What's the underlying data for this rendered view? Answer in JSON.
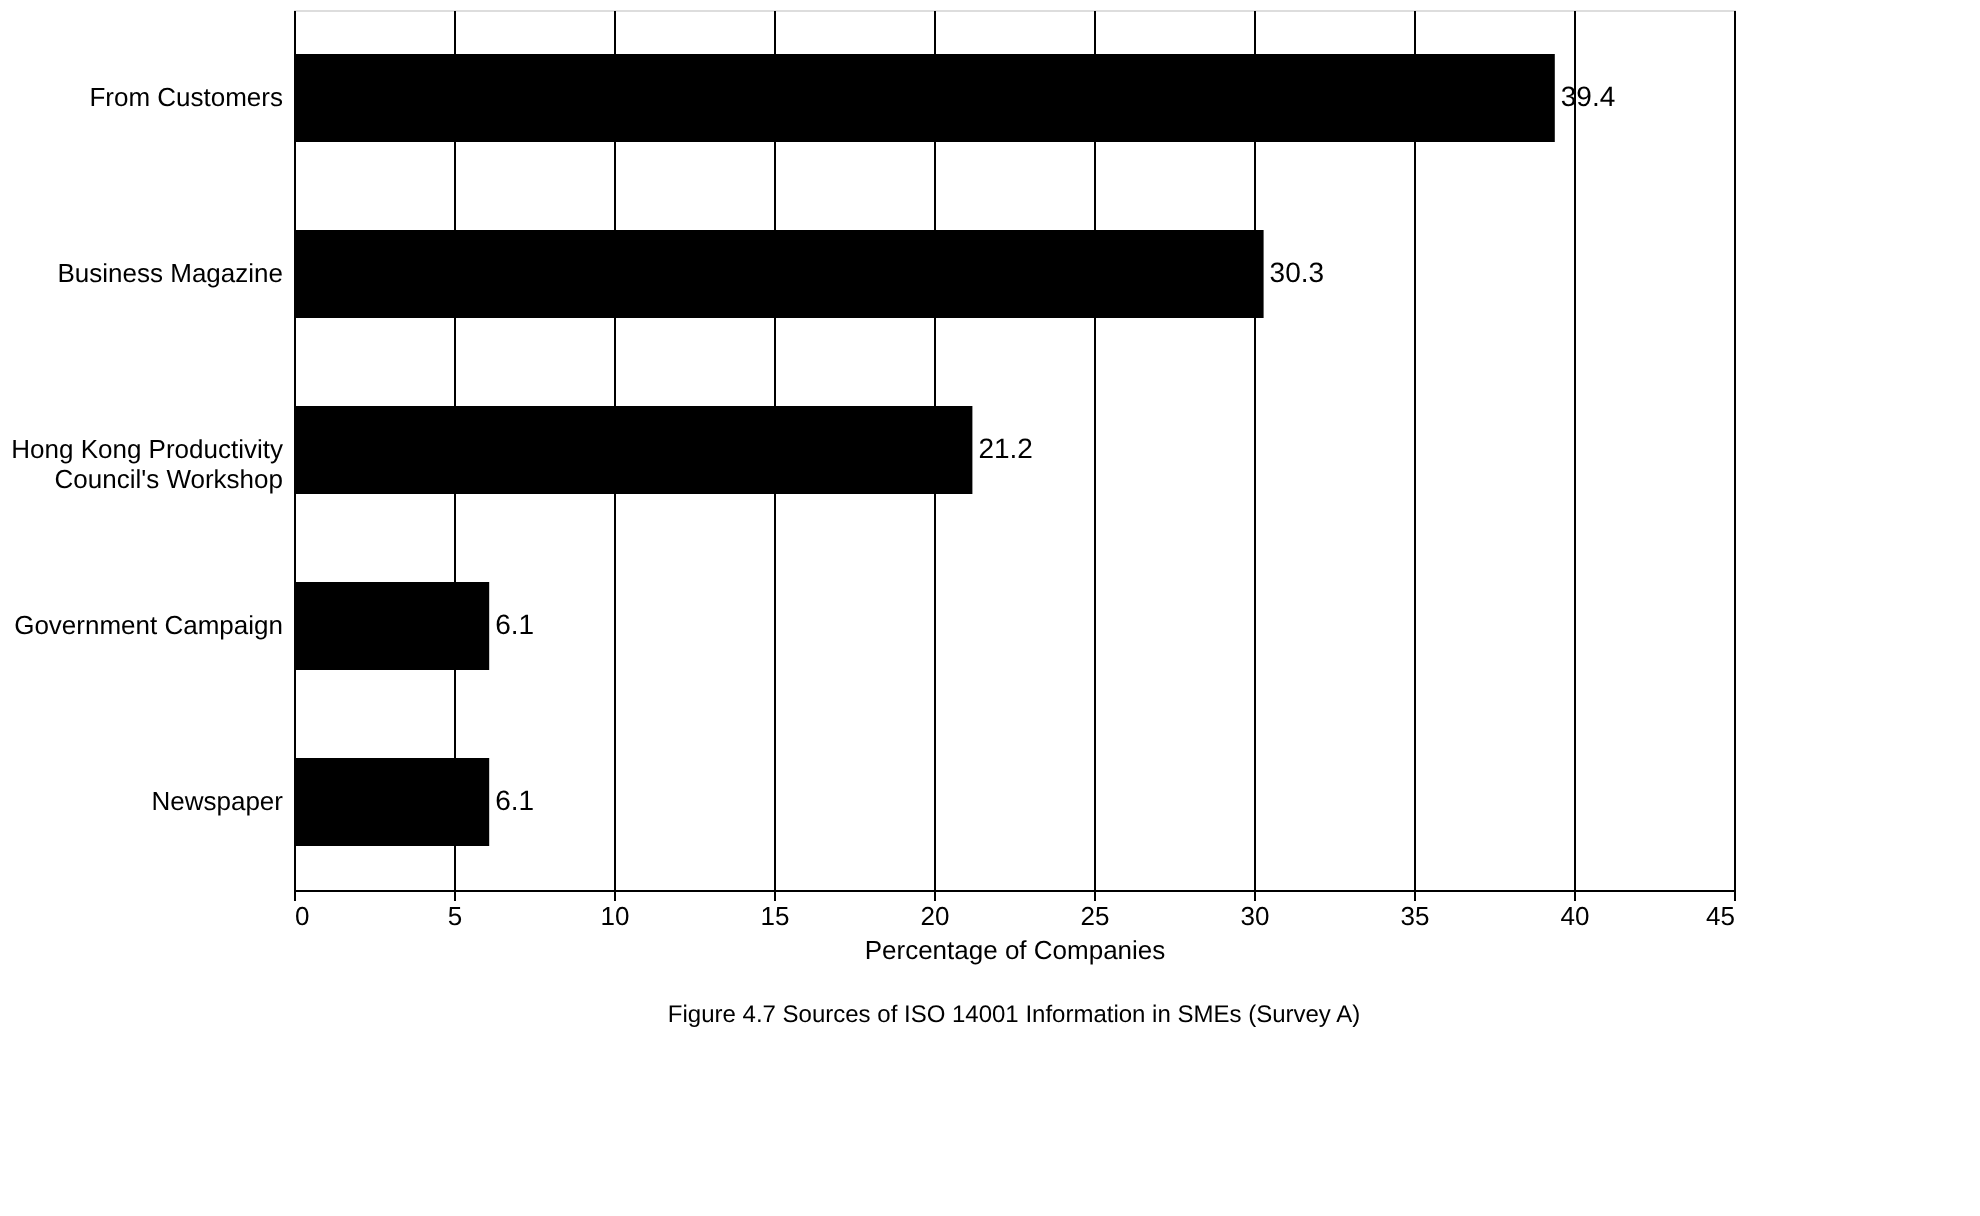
{
  "chart_data": {
    "type": "bar",
    "orientation": "horizontal",
    "title": "Figure 4.7  Sources of ISO 14001 Information in SMEs (Survey A)",
    "xlabel": "Percentage of Companies",
    "categories": [
      "From Customers",
      "Business Magazine",
      "Hong Kong Productivity Council's Workshop",
      "Government Campaign",
      "Newspaper"
    ],
    "values": [
      39.4,
      30.3,
      21.2,
      6.1,
      6.1
    ],
    "color": "#000000",
    "data_labels": true,
    "xlim": [
      0,
      45
    ],
    "xticks": [
      0,
      5,
      10,
      15,
      20,
      25,
      30,
      35,
      40,
      45
    ],
    "grid": "x"
  }
}
